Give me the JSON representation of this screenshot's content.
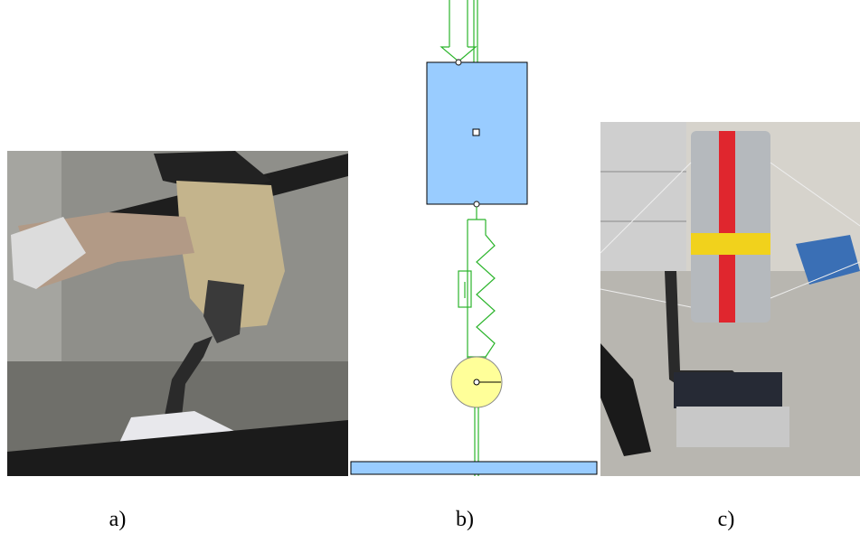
{
  "panels": [
    {
      "label": "a)"
    },
    {
      "label": "b)"
    },
    {
      "label": "c)"
    }
  ]
}
